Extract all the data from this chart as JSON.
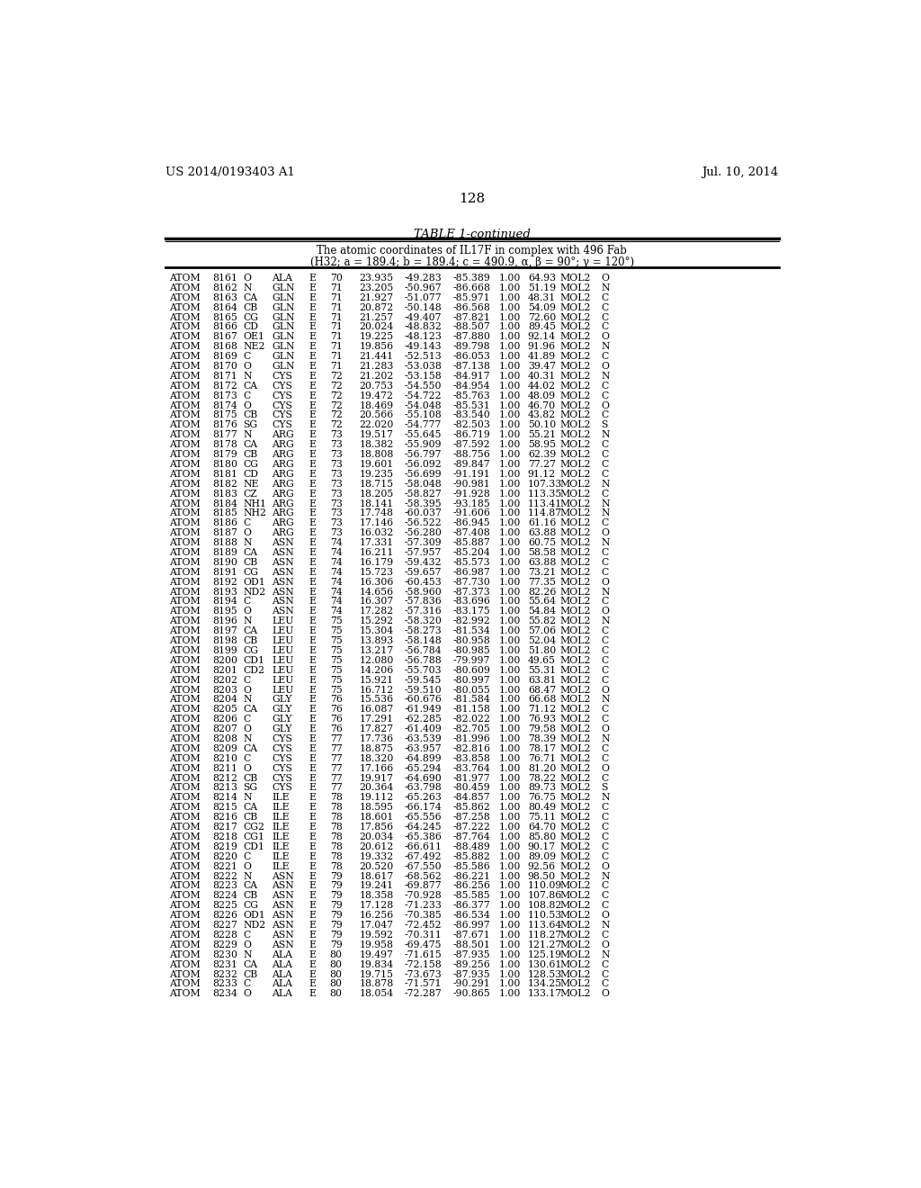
{
  "header_left": "US 2014/0193403 A1",
  "header_right": "Jul. 10, 2014",
  "page_number": "128",
  "table_title": "TABLE 1-continued",
  "table_subtitle1": "The atomic coordinates of IL17F in complex with 496 Fab",
  "table_subtitle2": "(H32; a = 189.4; b = 189.4; c = 490.9, α, β = 90°; γ = 120°)",
  "rows": [
    [
      "ATOM",
      "8161",
      "O",
      "ALA",
      "E",
      "70",
      "23.935",
      "-49.283",
      "-85.389",
      "1.00",
      "64.93",
      "MOL2",
      "O"
    ],
    [
      "ATOM",
      "8162",
      "N",
      "GLN",
      "E",
      "71",
      "23.205",
      "-50.967",
      "-86.668",
      "1.00",
      "51.19",
      "MOL2",
      "N"
    ],
    [
      "ATOM",
      "8163",
      "CA",
      "GLN",
      "E",
      "71",
      "21.927",
      "-51.077",
      "-85.971",
      "1.00",
      "48.31",
      "MOL2",
      "C"
    ],
    [
      "ATOM",
      "8164",
      "CB",
      "GLN",
      "E",
      "71",
      "20.872",
      "-50.148",
      "-86.568",
      "1.00",
      "54.09",
      "MOL2",
      "C"
    ],
    [
      "ATOM",
      "8165",
      "CG",
      "GLN",
      "E",
      "71",
      "21.257",
      "-49.407",
      "-87.821",
      "1.00",
      "72.60",
      "MOL2",
      "C"
    ],
    [
      "ATOM",
      "8166",
      "CD",
      "GLN",
      "E",
      "71",
      "20.024",
      "-48.832",
      "-88.507",
      "1.00",
      "89.45",
      "MOL2",
      "C"
    ],
    [
      "ATOM",
      "8167",
      "OE1",
      "GLN",
      "E",
      "71",
      "19.225",
      "-48.123",
      "-87.880",
      "1.00",
      "92.14",
      "MOL2",
      "O"
    ],
    [
      "ATOM",
      "8168",
      "NE2",
      "GLN",
      "E",
      "71",
      "19.856",
      "-49.143",
      "-89.798",
      "1.00",
      "91.96",
      "MOL2",
      "N"
    ],
    [
      "ATOM",
      "8169",
      "C",
      "GLN",
      "E",
      "71",
      "21.441",
      "-52.513",
      "-86.053",
      "1.00",
      "41.89",
      "MOL2",
      "C"
    ],
    [
      "ATOM",
      "8170",
      "O",
      "GLN",
      "E",
      "71",
      "21.283",
      "-53.038",
      "-87.138",
      "1.00",
      "39.47",
      "MOL2",
      "O"
    ],
    [
      "ATOM",
      "8171",
      "N",
      "CYS",
      "E",
      "72",
      "21.202",
      "-53.158",
      "-84.917",
      "1.00",
      "40.31",
      "MOL2",
      "N"
    ],
    [
      "ATOM",
      "8172",
      "CA",
      "CYS",
      "E",
      "72",
      "20.753",
      "-54.550",
      "-84.954",
      "1.00",
      "44.02",
      "MOL2",
      "C"
    ],
    [
      "ATOM",
      "8173",
      "C",
      "CYS",
      "E",
      "72",
      "19.472",
      "-54.722",
      "-85.763",
      "1.00",
      "48.09",
      "MOL2",
      "C"
    ],
    [
      "ATOM",
      "8174",
      "O",
      "CYS",
      "E",
      "72",
      "18.469",
      "-54.048",
      "-85.531",
      "1.00",
      "46.70",
      "MOL2",
      "O"
    ],
    [
      "ATOM",
      "8175",
      "CB",
      "CYS",
      "E",
      "72",
      "20.566",
      "-55.108",
      "-83.540",
      "1.00",
      "43.82",
      "MOL2",
      "C"
    ],
    [
      "ATOM",
      "8176",
      "SG",
      "CYS",
      "E",
      "72",
      "22.020",
      "-54.777",
      "-82.503",
      "1.00",
      "50.10",
      "MOL2",
      "S"
    ],
    [
      "ATOM",
      "8177",
      "N",
      "ARG",
      "E",
      "73",
      "19.517",
      "-55.645",
      "-86.719",
      "1.00",
      "55.21",
      "MOL2",
      "N"
    ],
    [
      "ATOM",
      "8178",
      "CA",
      "ARG",
      "E",
      "73",
      "18.382",
      "-55.909",
      "-87.592",
      "1.00",
      "58.95",
      "MOL2",
      "C"
    ],
    [
      "ATOM",
      "8179",
      "CB",
      "ARG",
      "E",
      "73",
      "18.808",
      "-56.797",
      "-88.756",
      "1.00",
      "62.39",
      "MOL2",
      "C"
    ],
    [
      "ATOM",
      "8180",
      "CG",
      "ARG",
      "E",
      "73",
      "19.601",
      "-56.092",
      "-89.847",
      "1.00",
      "77.27",
      "MOL2",
      "C"
    ],
    [
      "ATOM",
      "8181",
      "CD",
      "ARG",
      "E",
      "73",
      "19.235",
      "-56.699",
      "-91.191",
      "1.00",
      "91.12",
      "MOL2",
      "C"
    ],
    [
      "ATOM",
      "8182",
      "NE",
      "ARG",
      "E",
      "73",
      "18.715",
      "-58.048",
      "-90.981",
      "1.00",
      "107.33",
      "MOL2",
      "N"
    ],
    [
      "ATOM",
      "8183",
      "CZ",
      "ARG",
      "E",
      "73",
      "18.205",
      "-58.827",
      "-91.928",
      "1.00",
      "113.35",
      "MOL2",
      "C"
    ],
    [
      "ATOM",
      "8184",
      "NH1",
      "ARG",
      "E",
      "73",
      "18.141",
      "-58.395",
      "-93.185",
      "1.00",
      "113.41",
      "MOL2",
      "N"
    ],
    [
      "ATOM",
      "8185",
      "NH2",
      "ARG",
      "E",
      "73",
      "17.748",
      "-60.037",
      "-91.606",
      "1.00",
      "114.87",
      "MOL2",
      "N"
    ],
    [
      "ATOM",
      "8186",
      "C",
      "ARG",
      "E",
      "73",
      "17.146",
      "-56.522",
      "-86.945",
      "1.00",
      "61.16",
      "MOL2",
      "C"
    ],
    [
      "ATOM",
      "8187",
      "O",
      "ARG",
      "E",
      "73",
      "16.032",
      "-56.280",
      "-87.408",
      "1.00",
      "63.88",
      "MOL2",
      "O"
    ],
    [
      "ATOM",
      "8188",
      "N",
      "ASN",
      "E",
      "74",
      "17.331",
      "-57.309",
      "-85.887",
      "1.00",
      "60.75",
      "MOL2",
      "N"
    ],
    [
      "ATOM",
      "8189",
      "CA",
      "ASN",
      "E",
      "74",
      "16.211",
      "-57.957",
      "-85.204",
      "1.00",
      "58.58",
      "MOL2",
      "C"
    ],
    [
      "ATOM",
      "8190",
      "CB",
      "ASN",
      "E",
      "74",
      "16.179",
      "-59.432",
      "-85.573",
      "1.00",
      "63.88",
      "MOL2",
      "C"
    ],
    [
      "ATOM",
      "8191",
      "CG",
      "ASN",
      "E",
      "74",
      "15.723",
      "-59.657",
      "-86.987",
      "1.00",
      "73.21",
      "MOL2",
      "C"
    ],
    [
      "ATOM",
      "8192",
      "OD1",
      "ASN",
      "E",
      "74",
      "16.306",
      "-60.453",
      "-87.730",
      "1.00",
      "77.35",
      "MOL2",
      "O"
    ],
    [
      "ATOM",
      "8193",
      "ND2",
      "ASN",
      "E",
      "74",
      "14.656",
      "-58.960",
      "-87.373",
      "1.00",
      "82.26",
      "MOL2",
      "N"
    ],
    [
      "ATOM",
      "8194",
      "C",
      "ASN",
      "E",
      "74",
      "16.307",
      "-57.836",
      "-83.696",
      "1.00",
      "55.64",
      "MOL2",
      "C"
    ],
    [
      "ATOM",
      "8195",
      "O",
      "ASN",
      "E",
      "74",
      "17.282",
      "-57.316",
      "-83.175",
      "1.00",
      "54.84",
      "MOL2",
      "O"
    ],
    [
      "ATOM",
      "8196",
      "N",
      "LEU",
      "E",
      "75",
      "15.292",
      "-58.320",
      "-82.992",
      "1.00",
      "55.82",
      "MOL2",
      "N"
    ],
    [
      "ATOM",
      "8197",
      "CA",
      "LEU",
      "E",
      "75",
      "15.304",
      "-58.273",
      "-81.534",
      "1.00",
      "57.06",
      "MOL2",
      "C"
    ],
    [
      "ATOM",
      "8198",
      "CB",
      "LEU",
      "E",
      "75",
      "13.893",
      "-58.148",
      "-80.958",
      "1.00",
      "52.04",
      "MOL2",
      "C"
    ],
    [
      "ATOM",
      "8199",
      "CG",
      "LEU",
      "E",
      "75",
      "13.217",
      "-56.784",
      "-80.985",
      "1.00",
      "51.80",
      "MOL2",
      "C"
    ],
    [
      "ATOM",
      "8200",
      "CD1",
      "LEU",
      "E",
      "75",
      "12.080",
      "-56.788",
      "-79.997",
      "1.00",
      "49.65",
      "MOL2",
      "C"
    ],
    [
      "ATOM",
      "8201",
      "CD2",
      "LEU",
      "E",
      "75",
      "14.206",
      "-55.703",
      "-80.609",
      "1.00",
      "55.31",
      "MOL2",
      "C"
    ],
    [
      "ATOM",
      "8202",
      "C",
      "LEU",
      "E",
      "75",
      "15.921",
      "-59.545",
      "-80.997",
      "1.00",
      "63.81",
      "MOL2",
      "C"
    ],
    [
      "ATOM",
      "8203",
      "O",
      "LEU",
      "E",
      "75",
      "16.712",
      "-59.510",
      "-80.055",
      "1.00",
      "68.47",
      "MOL2",
      "O"
    ],
    [
      "ATOM",
      "8204",
      "N",
      "GLY",
      "E",
      "76",
      "15.536",
      "-60.676",
      "-81.584",
      "1.00",
      "66.68",
      "MOL2",
      "N"
    ],
    [
      "ATOM",
      "8205",
      "CA",
      "GLY",
      "E",
      "76",
      "16.087",
      "-61.949",
      "-81.158",
      "1.00",
      "71.12",
      "MOL2",
      "C"
    ],
    [
      "ATOM",
      "8206",
      "C",
      "GLY",
      "E",
      "76",
      "17.291",
      "-62.285",
      "-82.022",
      "1.00",
      "76.93",
      "MOL2",
      "C"
    ],
    [
      "ATOM",
      "8207",
      "O",
      "GLY",
      "E",
      "76",
      "17.827",
      "-61.409",
      "-82.705",
      "1.00",
      "79.58",
      "MOL2",
      "O"
    ],
    [
      "ATOM",
      "8208",
      "N",
      "CYS",
      "E",
      "77",
      "17.736",
      "-63.539",
      "-81.996",
      "1.00",
      "78.39",
      "MOL2",
      "N"
    ],
    [
      "ATOM",
      "8209",
      "CA",
      "CYS",
      "E",
      "77",
      "18.875",
      "-63.957",
      "-82.816",
      "1.00",
      "78.17",
      "MOL2",
      "C"
    ],
    [
      "ATOM",
      "8210",
      "C",
      "CYS",
      "E",
      "77",
      "18.320",
      "-64.899",
      "-83.858",
      "1.00",
      "76.71",
      "MOL2",
      "C"
    ],
    [
      "ATOM",
      "8211",
      "O",
      "CYS",
      "E",
      "77",
      "17.166",
      "-65.294",
      "-83.764",
      "1.00",
      "81.20",
      "MOL2",
      "O"
    ],
    [
      "ATOM",
      "8212",
      "CB",
      "CYS",
      "E",
      "77",
      "19.917",
      "-64.690",
      "-81.977",
      "1.00",
      "78.22",
      "MOL2",
      "C"
    ],
    [
      "ATOM",
      "8213",
      "SG",
      "CYS",
      "E",
      "77",
      "20.364",
      "-63.798",
      "-80.459",
      "1.00",
      "89.73",
      "MOL2",
      "S"
    ],
    [
      "ATOM",
      "8214",
      "N",
      "ILE",
      "E",
      "78",
      "19.112",
      "-65.263",
      "-84.857",
      "1.00",
      "76.75",
      "MOL2",
      "N"
    ],
    [
      "ATOM",
      "8215",
      "CA",
      "ILE",
      "E",
      "78",
      "18.595",
      "-66.174",
      "-85.862",
      "1.00",
      "80.49",
      "MOL2",
      "C"
    ],
    [
      "ATOM",
      "8216",
      "CB",
      "ILE",
      "E",
      "78",
      "18.601",
      "-65.556",
      "-87.258",
      "1.00",
      "75.11",
      "MOL2",
      "C"
    ],
    [
      "ATOM",
      "8217",
      "CG2",
      "ILE",
      "E",
      "78",
      "17.856",
      "-64.245",
      "-87.222",
      "1.00",
      "64.70",
      "MOL2",
      "C"
    ],
    [
      "ATOM",
      "8218",
      "CG1",
      "ILE",
      "E",
      "78",
      "20.034",
      "-65.386",
      "-87.764",
      "1.00",
      "85.80",
      "MOL2",
      "C"
    ],
    [
      "ATOM",
      "8219",
      "CD1",
      "ILE",
      "E",
      "78",
      "20.612",
      "-66.611",
      "-88.489",
      "1.00",
      "90.17",
      "MOL2",
      "C"
    ],
    [
      "ATOM",
      "8220",
      "C",
      "ILE",
      "E",
      "78",
      "19.332",
      "-67.492",
      "-85.882",
      "1.00",
      "89.09",
      "MOL2",
      "C"
    ],
    [
      "ATOM",
      "8221",
      "O",
      "ILE",
      "E",
      "78",
      "20.520",
      "-67.550",
      "-85.586",
      "1.00",
      "92.56",
      "MOL2",
      "O"
    ],
    [
      "ATOM",
      "8222",
      "N",
      "ASN",
      "E",
      "79",
      "18.617",
      "-68.562",
      "-86.221",
      "1.00",
      "98.50",
      "MOL2",
      "N"
    ],
    [
      "ATOM",
      "8223",
      "CA",
      "ASN",
      "E",
      "79",
      "19.241",
      "-69.877",
      "-86.256",
      "1.00",
      "110.09",
      "MOL2",
      "C"
    ],
    [
      "ATOM",
      "8224",
      "CB",
      "ASN",
      "E",
      "79",
      "18.358",
      "-70.928",
      "-85.585",
      "1.00",
      "107.86",
      "MOL2",
      "C"
    ],
    [
      "ATOM",
      "8225",
      "CG",
      "ASN",
      "E",
      "79",
      "17.128",
      "-71.233",
      "-86.377",
      "1.00",
      "108.82",
      "MOL2",
      "C"
    ],
    [
      "ATOM",
      "8226",
      "OD1",
      "ASN",
      "E",
      "79",
      "16.256",
      "-70.385",
      "-86.534",
      "1.00",
      "110.53",
      "MOL2",
      "O"
    ],
    [
      "ATOM",
      "8227",
      "ND2",
      "ASN",
      "E",
      "79",
      "17.047",
      "-72.452",
      "-86.997",
      "1.00",
      "113.64",
      "MOL2",
      "N"
    ],
    [
      "ATOM",
      "8228",
      "C",
      "ASN",
      "E",
      "79",
      "19.592",
      "-70.311",
      "-87.671",
      "1.00",
      "118.27",
      "MOL2",
      "C"
    ],
    [
      "ATOM",
      "8229",
      "O",
      "ASN",
      "E",
      "79",
      "19.958",
      "-69.475",
      "-88.501",
      "1.00",
      "121.27",
      "MOL2",
      "O"
    ],
    [
      "ATOM",
      "8230",
      "N",
      "ALA",
      "E",
      "80",
      "19.497",
      "-71.615",
      "-87.935",
      "1.00",
      "125.19",
      "MOL2",
      "N"
    ],
    [
      "ATOM",
      "8231",
      "CA",
      "ALA",
      "E",
      "80",
      "19.834",
      "-72.158",
      "-89.256",
      "1.00",
      "130.61",
      "MOL2",
      "C"
    ],
    [
      "ATOM",
      "8232",
      "CB",
      "ALA",
      "E",
      "80",
      "19.715",
      "-73.673",
      "-87.935",
      "1.00",
      "128.53",
      "MOL2",
      "C"
    ],
    [
      "ATOM",
      "8233",
      "C",
      "ALA",
      "E",
      "80",
      "18.878",
      "-71.571",
      "-90.291",
      "1.00",
      "134.25",
      "MOL2",
      "C"
    ],
    [
      "ATOM",
      "8234",
      "O",
      "ALA",
      "E",
      "80",
      "18.054",
      "-72.287",
      "-90.865",
      "1.00",
      "133.17",
      "MOL2",
      "O"
    ]
  ]
}
